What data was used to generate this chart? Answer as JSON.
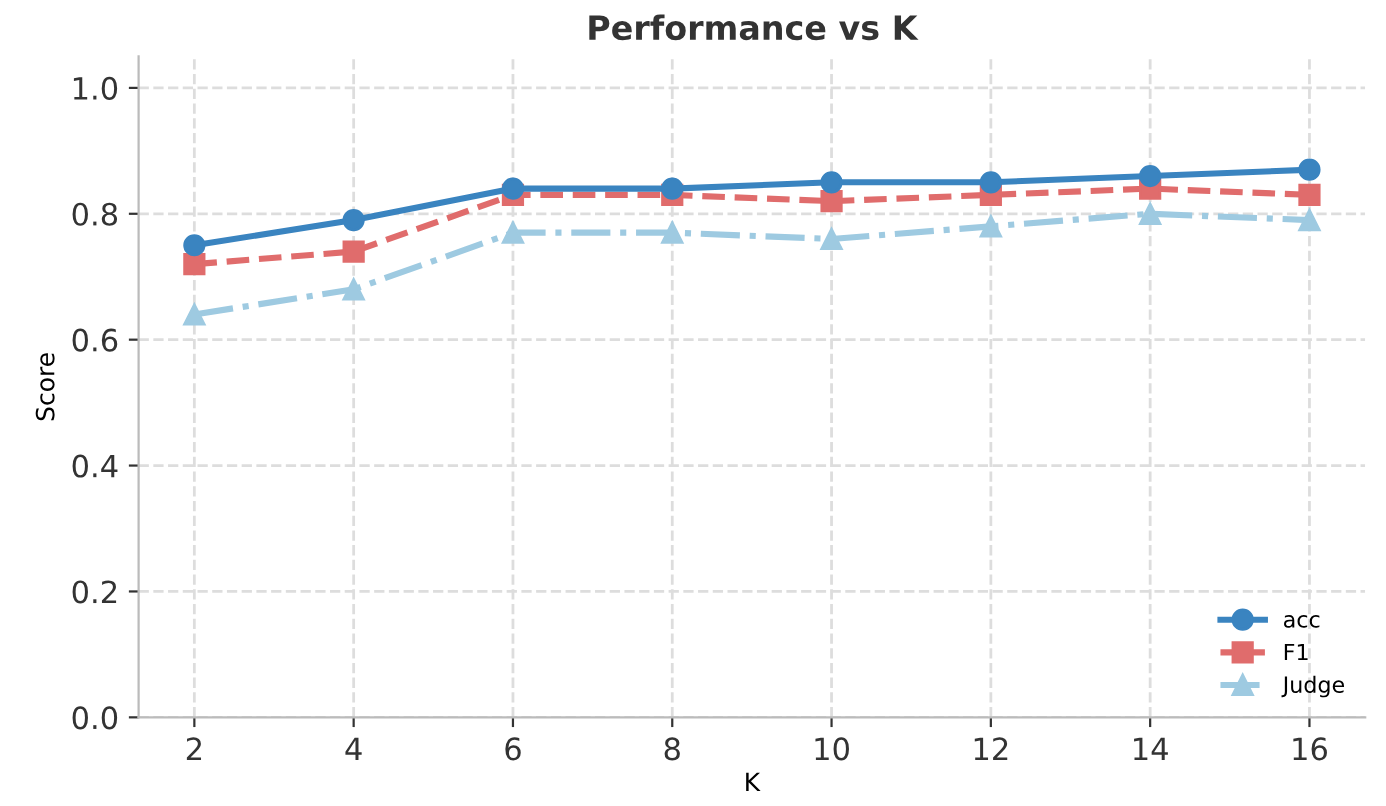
{
  "chart_data": {
    "type": "line",
    "title": "Performance vs K",
    "xlabel": "K",
    "ylabel": "Score",
    "x": [
      2,
      4,
      6,
      8,
      10,
      12,
      14,
      16
    ],
    "series": [
      {
        "name": "acc",
        "color": "#3a84c0",
        "marker": "circle",
        "line_style": "solid",
        "values": [
          0.75,
          0.79,
          0.84,
          0.84,
          0.85,
          0.85,
          0.86,
          0.87
        ]
      },
      {
        "name": "F1",
        "color": "#e06c6c",
        "marker": "square",
        "line_style": "dashed",
        "values": [
          0.72,
          0.74,
          0.83,
          0.83,
          0.82,
          0.83,
          0.84,
          0.83
        ]
      },
      {
        "name": "Judge",
        "color": "#9ecae1",
        "marker": "triangle",
        "line_style": "dashdot",
        "values": [
          0.64,
          0.68,
          0.77,
          0.77,
          0.76,
          0.78,
          0.8,
          0.79
        ]
      }
    ],
    "xlim": [
      1.3,
      16.7
    ],
    "xticks": [
      2,
      4,
      6,
      8,
      10,
      12,
      14,
      16
    ],
    "ylim": [
      0.0,
      1.05
    ],
    "yticks": [
      {
        "value": 0,
        "label": "0.0"
      },
      {
        "value": 0.2,
        "label": "0.2"
      },
      {
        "value": 0.4,
        "label": "0.4"
      },
      {
        "value": 0.6,
        "label": "0.6"
      },
      {
        "value": 0.8,
        "label": "0.8"
      },
      {
        "value": 1.0,
        "label": "1.0"
      }
    ],
    "grid": true,
    "legend": "lower right"
  }
}
